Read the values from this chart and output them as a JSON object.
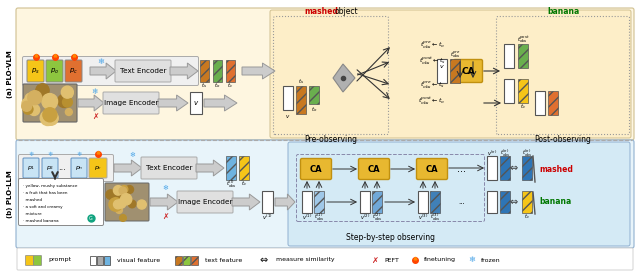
{
  "fig_width": 6.4,
  "fig_height": 2.76,
  "dpi": 100,
  "bg_color": "#ffffff",
  "top_panel_bg": "#fef6e0",
  "bottom_panel_bg": "#e8f4fa",
  "step_panel_bg": "#d4eaf5",
  "label_a": "(a) PLO-VLM",
  "label_b": "(b) PLO-LLM",
  "pre_observing": "Pre-observing",
  "post_observing": "Post-observing",
  "title_stepbystep": "Step-by-step observing",
  "text_encoder": "Text Encoder",
  "image_encoder": "Image Encoder",
  "color_orange": "#E07030",
  "color_green": "#6AAF4E",
  "color_yellow_prompt": "#F5C518",
  "color_green_prompt": "#8DC63F",
  "color_blue_light": "#6EB3E0",
  "color_blue_dark": "#2E75B6",
  "color_brown_feat": "#C87820",
  "color_red": "#CC0000",
  "color_dark_green": "#007700",
  "color_ca_bg": "#E8B830",
  "color_ca_border": "#C09010",
  "color_gray_box": "#e0e0e0",
  "color_snowflake": "#4DA6E8",
  "color_fire": "#E05020"
}
